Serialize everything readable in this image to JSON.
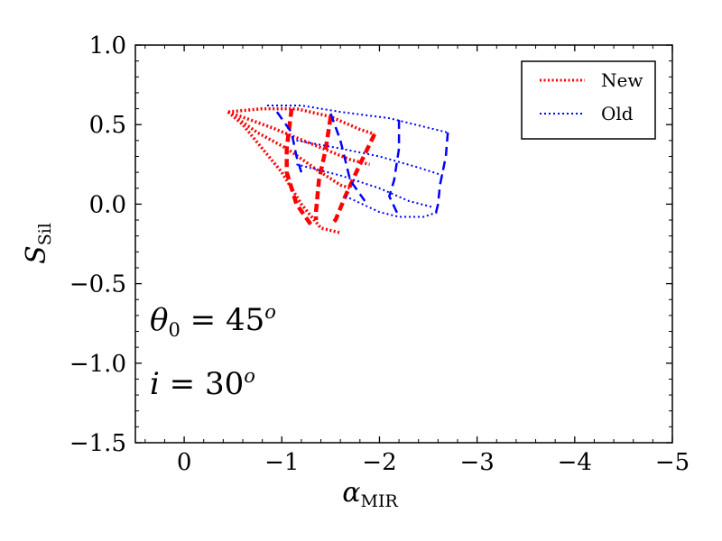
{
  "chart_data": {
    "type": "line",
    "xlabel": "α",
    "xlabel_sub": "MIR",
    "ylabel": "S",
    "ylabel_sub": "Sil",
    "xlim": [
      0.5,
      -5
    ],
    "ylim": [
      -1.5,
      1.0
    ],
    "x_ticks": [
      0,
      -1,
      -2,
      -3,
      -4,
      -5
    ],
    "x_tick_labels": [
      "0",
      "−1",
      "−2",
      "−3",
      "−4",
      "−5"
    ],
    "y_ticks": [
      1.0,
      0.5,
      0.0,
      -0.5,
      -1.0,
      -1.5
    ],
    "y_tick_labels": [
      "1.0",
      "0.5",
      "0.0",
      "−0.5",
      "−1.0",
      "−1.5"
    ],
    "grid": false,
    "legend_position": "top-right",
    "annotations": [
      {
        "main": "θ",
        "sub": "0",
        "rest": " = 45",
        "sup": "o"
      },
      {
        "main": "i",
        "sub": "",
        "rest": " = 30",
        "sup": "o"
      }
    ],
    "series": [
      {
        "name": "New",
        "color": "#ff0000",
        "style": "dotted",
        "lines": [
          [
            [
              -0.45,
              0.58
            ],
            [
              -0.6,
              0.5
            ],
            [
              -0.8,
              0.35
            ],
            [
              -1.0,
              0.2
            ],
            [
              -1.2,
              0.0
            ],
            [
              -1.4,
              -0.15
            ],
            [
              -1.6,
              -0.18
            ]
          ],
          [
            [
              -0.45,
              0.58
            ],
            [
              -0.75,
              0.45
            ],
            [
              -1.05,
              0.35
            ],
            [
              -1.35,
              0.22
            ],
            [
              -1.6,
              0.12
            ],
            [
              -1.7,
              0.1
            ]
          ],
          [
            [
              -0.45,
              0.58
            ],
            [
              -0.9,
              0.48
            ],
            [
              -1.3,
              0.38
            ],
            [
              -1.7,
              0.28
            ],
            [
              -1.9,
              0.25
            ]
          ],
          [
            [
              -0.45,
              0.58
            ],
            [
              -0.8,
              0.6
            ],
            [
              -1.15,
              0.6
            ],
            [
              -1.5,
              0.55
            ],
            [
              -1.8,
              0.47
            ],
            [
              -1.95,
              0.44
            ]
          ]
        ],
        "dashed_lines": [
          [
            [
              -1.1,
              0.6
            ],
            [
              -1.05,
              0.35
            ],
            [
              -1.05,
              0.2
            ],
            [
              -1.15,
              0.0
            ],
            [
              -1.3,
              -0.13
            ]
          ],
          [
            [
              -1.5,
              0.55
            ],
            [
              -1.45,
              0.35
            ],
            [
              -1.38,
              0.15
            ],
            [
              -1.35,
              -0.05
            ],
            [
              -1.35,
              -0.1
            ]
          ],
          [
            [
              -1.95,
              0.44
            ],
            [
              -1.8,
              0.25
            ],
            [
              -1.65,
              0.05
            ],
            [
              -1.55,
              -0.1
            ],
            [
              -1.5,
              -0.13
            ]
          ]
        ]
      },
      {
        "name": "Old",
        "color": "#0000ff",
        "style": "dotted",
        "lines": [
          [
            [
              -0.85,
              0.62
            ],
            [
              -1.2,
              0.62
            ],
            [
              -1.6,
              0.58
            ],
            [
              -2.1,
              0.54
            ],
            [
              -2.5,
              0.48
            ],
            [
              -2.7,
              0.45
            ]
          ],
          [
            [
              -1.15,
              0.4
            ],
            [
              -1.6,
              0.35
            ],
            [
              -2.0,
              0.3
            ],
            [
              -2.4,
              0.23
            ],
            [
              -2.65,
              0.18
            ]
          ],
          [
            [
              -1.15,
              0.25
            ],
            [
              -1.6,
              0.18
            ],
            [
              -2.0,
              0.1
            ],
            [
              -2.3,
              0.02
            ],
            [
              -2.55,
              -0.02
            ]
          ],
          [
            [
              -1.65,
              0.05
            ],
            [
              -2.0,
              -0.05
            ],
            [
              -2.2,
              -0.08
            ],
            [
              -2.45,
              -0.08
            ],
            [
              -2.6,
              -0.05
            ]
          ]
        ],
        "dashed_lines": [
          [
            [
              -0.95,
              0.58
            ],
            [
              -1.1,
              0.45
            ],
            [
              -1.15,
              0.3
            ],
            [
              -1.2,
              0.2
            ]
          ],
          [
            [
              -1.5,
              0.57
            ],
            [
              -1.6,
              0.4
            ],
            [
              -1.7,
              0.15
            ],
            [
              -1.85,
              0.02
            ]
          ],
          [
            [
              -2.2,
              0.53
            ],
            [
              -2.2,
              0.35
            ],
            [
              -2.15,
              0.15
            ],
            [
              -2.1,
              0.05
            ],
            [
              -2.2,
              -0.08
            ]
          ],
          [
            [
              -2.7,
              0.45
            ],
            [
              -2.68,
              0.3
            ],
            [
              -2.62,
              0.12
            ],
            [
              -2.6,
              0.0
            ],
            [
              -2.58,
              -0.05
            ]
          ]
        ]
      }
    ]
  }
}
